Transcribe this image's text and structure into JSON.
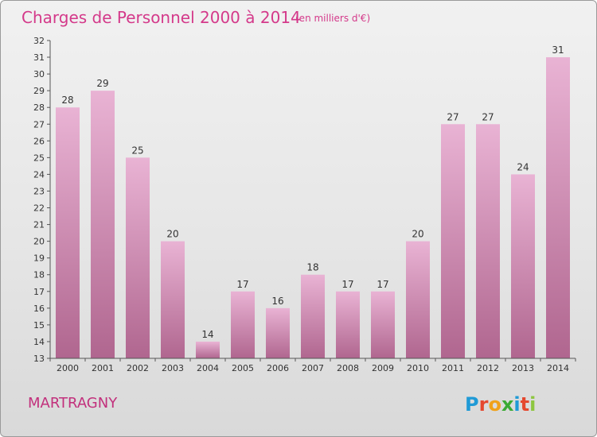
{
  "header": {
    "title": "Charges de Personnel 2000 à 2014",
    "subtitle": "(en milliers d'€)"
  },
  "footer": {
    "commune": "MARTRAGNY",
    "logo": "Proxiti",
    "logo_letters": [
      {
        "ch": "P",
        "color": "#1f9ad6"
      },
      {
        "ch": "r",
        "color": "#e5482f"
      },
      {
        "ch": "o",
        "color": "#f0a21b"
      },
      {
        "ch": "x",
        "color": "#3aaa35"
      },
      {
        "ch": "i",
        "color": "#1f9ad6"
      },
      {
        "ch": "t",
        "color": "#e5482f"
      },
      {
        "ch": "i",
        "color": "#8dc63f"
      }
    ]
  },
  "colors": {
    "bar_light": "#e9b3d4",
    "bar_dark": "#b0668f",
    "accent": "#d4398a"
  },
  "chart_data": {
    "type": "bar",
    "title": "Charges de Personnel 2000 à 2014",
    "subtitle": "(en milliers d'€)",
    "categories": [
      "2000",
      "2001",
      "2002",
      "2003",
      "2004",
      "2005",
      "2006",
      "2007",
      "2008",
      "2009",
      "2010",
      "2011",
      "2012",
      "2013",
      "2014"
    ],
    "values": [
      28,
      29,
      25,
      20,
      14,
      17,
      16,
      18,
      17,
      17,
      20,
      27,
      27,
      24,
      31
    ],
    "ylim": [
      13,
      32
    ],
    "yticks": [
      13,
      14,
      15,
      16,
      17,
      18,
      19,
      20,
      21,
      22,
      23,
      24,
      25,
      26,
      27,
      28,
      29,
      30,
      31,
      32
    ],
    "grid": false,
    "legend": "none"
  }
}
